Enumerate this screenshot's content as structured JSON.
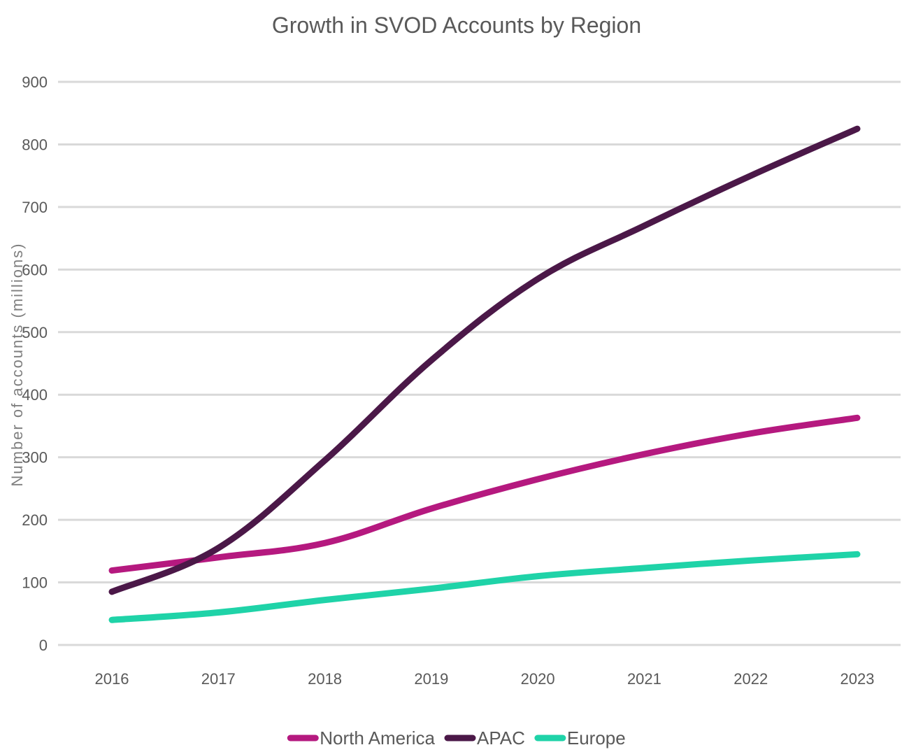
{
  "chart_data": {
    "type": "line",
    "title": "Growth in SVOD Accounts by Region",
    "xlabel": "",
    "ylabel": "Number of accounts (millions)",
    "ylim": [
      0,
      900
    ],
    "yticks": [
      "0",
      "100",
      "200",
      "300",
      "400",
      "500",
      "600",
      "700",
      "800",
      "900"
    ],
    "categories": [
      "2016",
      "2017",
      "2018",
      "2019",
      "2020",
      "2021",
      "2022",
      "2023"
    ],
    "grid": true,
    "legend_position": "bottom",
    "series": [
      {
        "name": "North America",
        "color": "#b5197f",
        "values": [
          119,
          140,
          163,
          218,
          265,
          305,
          338,
          363
        ]
      },
      {
        "name": "APAC",
        "color": "#4b1848",
        "values": [
          85,
          155,
          295,
          455,
          585,
          670,
          750,
          825
        ]
      },
      {
        "name": "Europe",
        "color": "#1fd3a8",
        "values": [
          40,
          52,
          72,
          90,
          110,
          123,
          135,
          145
        ]
      }
    ]
  }
}
